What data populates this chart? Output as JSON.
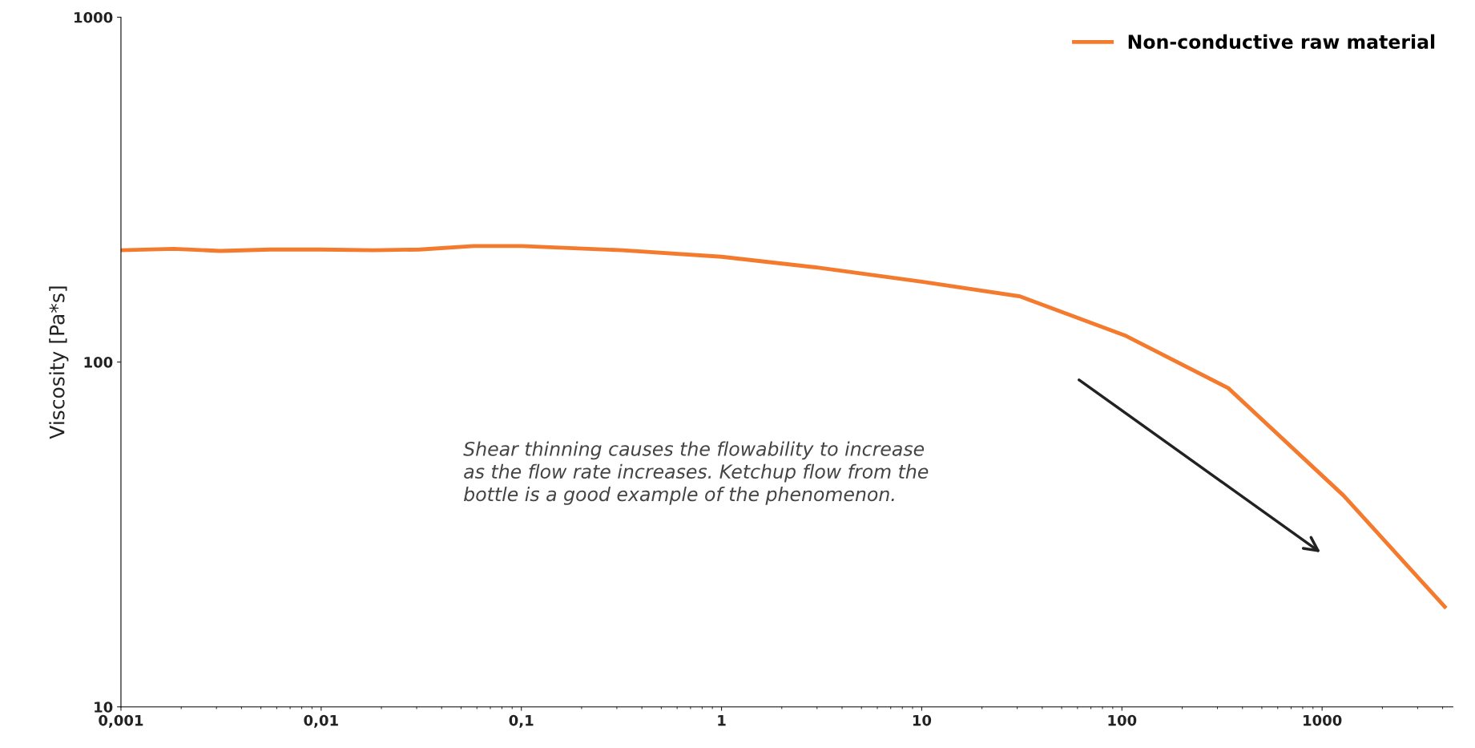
{
  "chart_data": {
    "type": "line",
    "ylabel": "Viscosity [Pa*s]",
    "log": "xy",
    "x": [
      0.001,
      0.00183,
      0.00312,
      0.0056,
      0.01,
      0.0183,
      0.031,
      0.058,
      0.1,
      0.32,
      1,
      3,
      10,
      31,
      105,
      340,
      1280,
      4100
    ],
    "series": [
      {
        "name": "Non-conductive raw material",
        "color": "#f47a2e",
        "values": [
          211,
          213,
          210,
          212,
          212,
          211,
          212,
          217,
          217,
          211,
          202,
          188,
          171,
          155,
          119,
          84,
          41,
          19.5
        ]
      }
    ],
    "xlim": [
      0.001,
      4500
    ],
    "ylim": [
      10,
      1000
    ],
    "xticks": [
      {
        "value": 0.001,
        "label": "0,001"
      },
      {
        "value": 0.01,
        "label": "0,01"
      },
      {
        "value": 0.1,
        "label": "0,1"
      },
      1,
      10,
      100,
      1000
    ],
    "yticks": [
      10,
      100,
      1000
    ],
    "grid": false,
    "legend": "top right",
    "marker": "none",
    "line_style": "solid",
    "annotations": [
      "Shear thinning causes the flowability to increase\nas the flow rate increases. Ketchup flow from the\nbottle is a good example of the phenomenon."
    ]
  }
}
